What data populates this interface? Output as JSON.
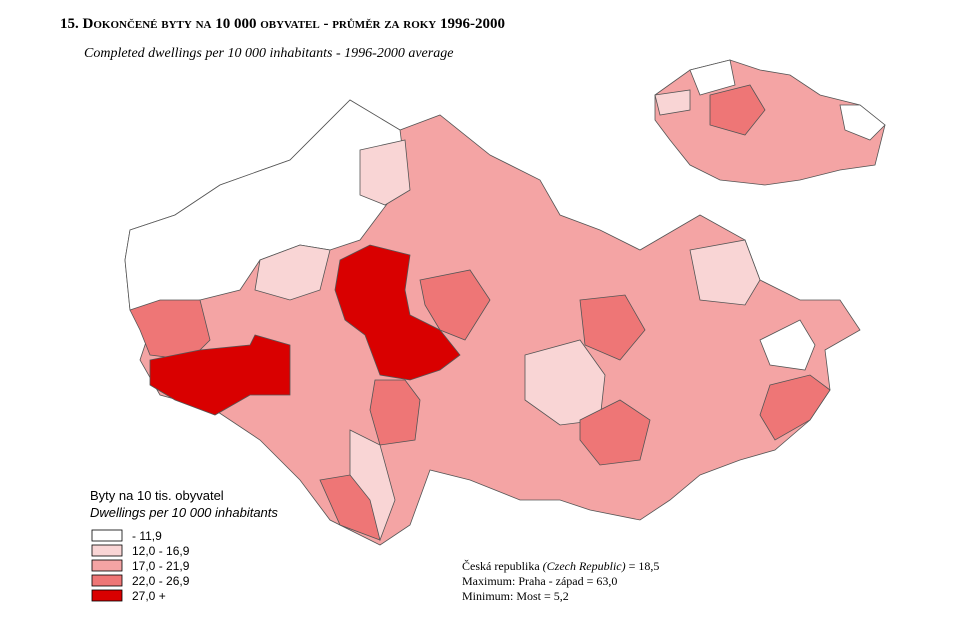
{
  "title": "15. Dokončené byty na 10 000 obyvatel  - průměr za roky 1996-2000",
  "subtitle": "Completed dwellings per 10 000 inhabitants - 1996-2000 average",
  "legend": {
    "title": "Byty na 10 tis. obyvatel",
    "subtitle": "Dwellings per 10 000 inhabitants",
    "items": [
      {
        "label": "-  11,9",
        "color": "#ffffff"
      },
      {
        "label": "12,0 - 16,9",
        "color": "#f9d5d5"
      },
      {
        "label": "17,0 - 21,9",
        "color": "#f4a4a4"
      },
      {
        "label": "22,0 - 26,9",
        "color": "#ee7676"
      },
      {
        "label": "27,0 +",
        "color": "#d90000"
      }
    ]
  },
  "stats": {
    "country": "Česká republika",
    "country_en": "(Czech Republic)",
    "country_value": "= 18,5",
    "maximum": "Maximum: Praha - západ = 63,0",
    "minimum": "Minimum: Most = 5,2"
  }
}
